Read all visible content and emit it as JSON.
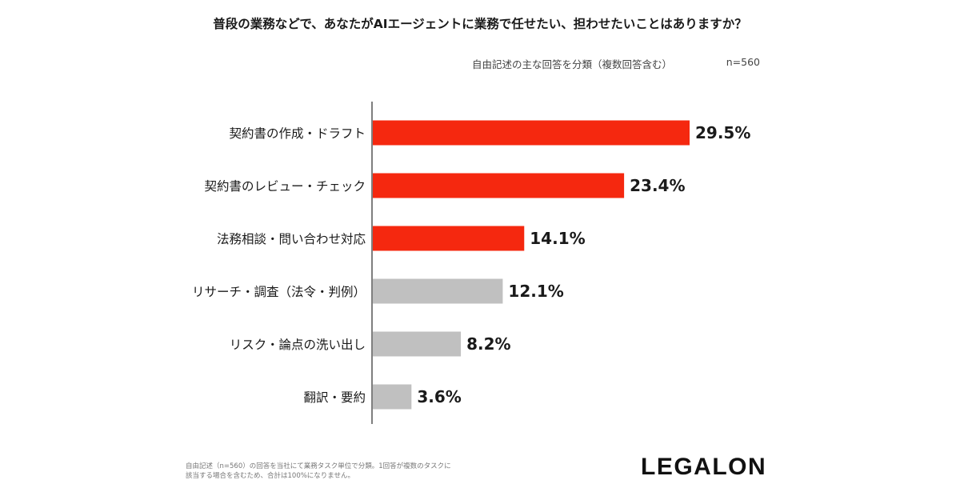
{
  "title": "普段の業務などで、あなたがAIエージェントに業務で任せたい、担わせたいことはありますか？",
  "subtitle": "自由記述の主な回答を分類（複数回答含む）",
  "sample_size": "n=560",
  "footnote": "自由記述（n=560）の回答を当社にて業務タスク単位で分類。1回答が複数のタスクに該当する場合を含むため、合計は100%になりません。",
  "logo_text": "LEGALON",
  "colors": {
    "highlight": "#f5280f",
    "other": "#c0c0c0",
    "axis": "#555555"
  },
  "chart_data": {
    "type": "bar",
    "orientation": "horizontal",
    "title": "普段の業務などで、あなたがAIエージェントに業務で任せたい、担わせたいことはありますか？",
    "xlabel": "",
    "ylabel": "",
    "unit": "%",
    "xlim": [
      0,
      35
    ],
    "grid": false,
    "categories": [
      "契約書の作成・ドラフト",
      "契約書のレビュー・チェック",
      "法務相談・問い合わせ対応",
      "リサーチ・調査（法令・判例）",
      "リスク・論点の洗い出し",
      "翻訳・要約"
    ],
    "values": [
      29.5,
      23.4,
      14.1,
      12.1,
      8.2,
      3.6
    ],
    "value_labels": [
      "29.5%",
      "23.4%",
      "14.1%",
      "12.1%",
      "8.2%",
      "3.6%"
    ],
    "highlighted": [
      true,
      true,
      true,
      false,
      false,
      false
    ]
  }
}
